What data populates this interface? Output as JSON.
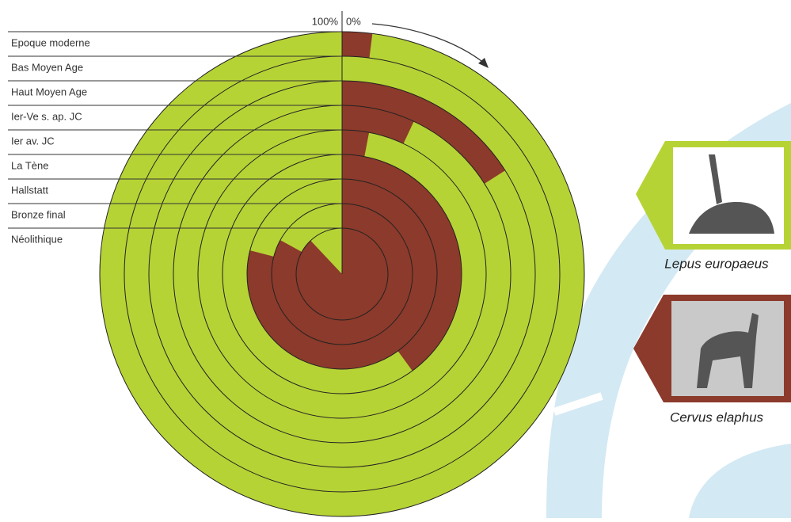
{
  "chart_data": {
    "type": "radial_bar",
    "categories": [
      "Epoque moderne",
      "Bas Moyen Age",
      "Haut Moyen Age",
      "Ier-Ve s. ap. JC",
      "Ier av. JC",
      "La Tène",
      "Hallstatt",
      "Bronze final",
      "Néolithique"
    ],
    "series": [
      {
        "name": "Cervus elaphus",
        "color": "#8c3a2b",
        "values": [
          2,
          0,
          16,
          7,
          3,
          40,
          79,
          83,
          88
        ]
      }
    ],
    "complement": {
      "name": "Lepus europaeus",
      "color": "#b6d335"
    },
    "start_label": "0%",
    "end_label": "100%"
  }
}
